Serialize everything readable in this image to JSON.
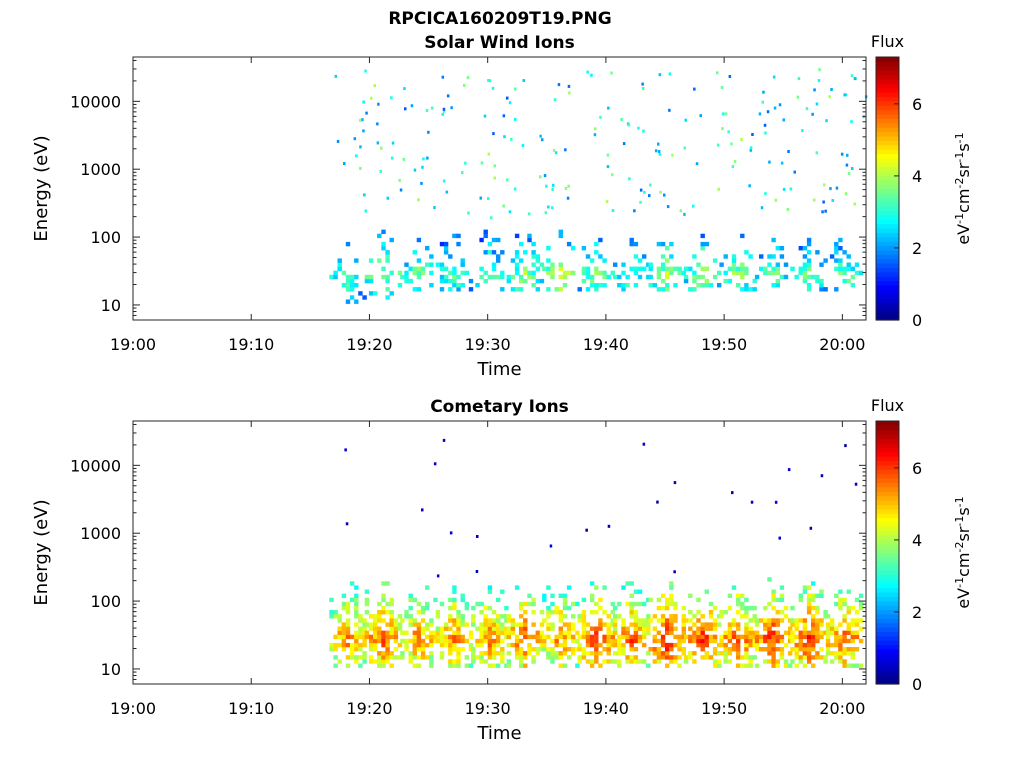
{
  "figure": {
    "title": "RPCICA160209T19.PNG"
  },
  "colors": {
    "colormap": [
      "#00007f",
      "#0000ff",
      "#007fff",
      "#00ffff",
      "#7fff7f",
      "#ffff00",
      "#ff7f00",
      "#ff0000",
      "#7f0000"
    ]
  },
  "chart_data": [
    {
      "type": "heatmap",
      "title": "Solar Wind Ions",
      "xlabel": "Time",
      "ylabel": "Energy (eV)",
      "x_ticks": [
        "19:00",
        "19:10",
        "19:20",
        "19:30",
        "19:40",
        "19:50",
        "20:00"
      ],
      "y_ticks": [
        "10",
        "100",
        "1000",
        "10000"
      ],
      "y_scale": "log",
      "xlim": [
        "19:00",
        "20:02"
      ],
      "ylim": [
        6,
        45000
      ],
      "colorbar": {
        "title": "Flux",
        "label": "eV-1cm-2sr-1s-1",
        "ticks": [
          "0",
          "2",
          "4",
          "6"
        ],
        "range": [
          0,
          7.3
        ]
      },
      "description": "Sparse bursts between 19:17 and 20:02, periodic ~3 min structures",
      "bursts": [
        {
          "t": "19:18",
          "e_low": 10,
          "e_high": 300,
          "core_flux": 3.5
        },
        {
          "t": "19:21",
          "e_low": 10,
          "e_high": 250,
          "core_flux": 4.0
        },
        {
          "t": "19:24",
          "e_low": 15,
          "e_high": 250,
          "core_flux": 3.5
        },
        {
          "t": "19:27",
          "e_low": 15,
          "e_high": 250,
          "core_flux": 3.5
        },
        {
          "t": "19:30",
          "e_low": 15,
          "e_high": 250,
          "core_flux": 3.5
        },
        {
          "t": "19:33",
          "e_low": 15,
          "e_high": 250,
          "core_flux": 3.8
        },
        {
          "t": "19:36",
          "e_low": 15,
          "e_high": 250,
          "core_flux": 4.2
        },
        {
          "t": "19:39",
          "e_low": 15,
          "e_high": 250,
          "core_flux": 3.8
        },
        {
          "t": "19:42",
          "e_low": 15,
          "e_high": 250,
          "core_flux": 3.5
        },
        {
          "t": "19:45",
          "e_low": 15,
          "e_high": 250,
          "core_flux": 4.0
        },
        {
          "t": "19:48",
          "e_low": 15,
          "e_high": 250,
          "core_flux": 3.8
        },
        {
          "t": "19:51",
          "e_low": 15,
          "e_high": 250,
          "core_flux": 3.8
        },
        {
          "t": "19:54",
          "e_low": 15,
          "e_high": 250,
          "core_flux": 3.5
        },
        {
          "t": "19:57",
          "e_low": 15,
          "e_high": 250,
          "core_flux": 3.5
        },
        {
          "t": "20:00",
          "e_low": 15,
          "e_high": 250,
          "core_flux": 3.5
        }
      ]
    },
    {
      "type": "heatmap",
      "title": "Cometary Ions",
      "xlabel": "Time",
      "ylabel": "Energy (eV)",
      "x_ticks": [
        "19:00",
        "19:10",
        "19:20",
        "19:30",
        "19:40",
        "19:50",
        "20:00"
      ],
      "y_ticks": [
        "10",
        "100",
        "1000",
        "10000"
      ],
      "y_scale": "log",
      "xlim": [
        "19:00",
        "20:02"
      ],
      "ylim": [
        6,
        45000
      ],
      "colorbar": {
        "title": "Flux",
        "label": "eV-1cm-2sr-1s-1",
        "ticks": [
          "0",
          "2",
          "4",
          "6"
        ],
        "range": [
          0,
          7.3
        ]
      },
      "description": "Periodic dispersed ion bursts from 19:17 to 20:02, intense at 20-40 eV",
      "bursts": [
        {
          "t": "19:18",
          "e_low": 10,
          "e_high": 600,
          "core_flux": 5.5
        },
        {
          "t": "19:21",
          "e_low": 10,
          "e_high": 600,
          "core_flux": 5.8
        },
        {
          "t": "19:24",
          "e_low": 10,
          "e_high": 600,
          "core_flux": 5.5
        },
        {
          "t": "19:27",
          "e_low": 10,
          "e_high": 600,
          "core_flux": 5.5
        },
        {
          "t": "19:30",
          "e_low": 10,
          "e_high": 600,
          "core_flux": 5.5
        },
        {
          "t": "19:33",
          "e_low": 10,
          "e_high": 600,
          "core_flux": 5.8
        },
        {
          "t": "19:36",
          "e_low": 10,
          "e_high": 600,
          "core_flux": 5.5
        },
        {
          "t": "19:39",
          "e_low": 10,
          "e_high": 600,
          "core_flux": 6.0
        },
        {
          "t": "19:42",
          "e_low": 10,
          "e_high": 600,
          "core_flux": 5.8
        },
        {
          "t": "19:45",
          "e_low": 10,
          "e_high": 600,
          "core_flux": 6.2
        },
        {
          "t": "19:48",
          "e_low": 10,
          "e_high": 600,
          "core_flux": 6.0
        },
        {
          "t": "19:51",
          "e_low": 10,
          "e_high": 600,
          "core_flux": 5.8
        },
        {
          "t": "19:54",
          "e_low": 10,
          "e_high": 600,
          "core_flux": 6.0
        },
        {
          "t": "19:57",
          "e_low": 10,
          "e_high": 600,
          "core_flux": 6.0
        },
        {
          "t": "20:00",
          "e_low": 10,
          "e_high": 600,
          "core_flux": 5.8
        }
      ]
    }
  ]
}
